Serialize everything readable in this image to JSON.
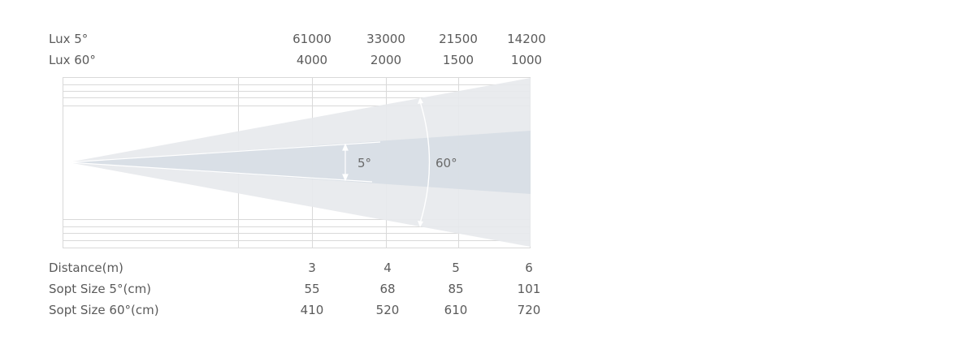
{
  "rows_top": [
    {
      "label": "Lux 5°",
      "values": [
        "61000",
        "33000",
        "21500",
        "14200"
      ]
    },
    {
      "label": "Lux 60°",
      "values": [
        "4000",
        "2000",
        "1500",
        "1000"
      ]
    }
  ],
  "rows_bottom": [
    {
      "label": "Distance(m)",
      "values": [
        "3",
        "4",
        "5",
        "6"
      ]
    },
    {
      "label": "Sopt Size 5°(cm)",
      "values": [
        "55",
        "68",
        "85",
        "101"
      ]
    },
    {
      "label": "Sopt Size 60°(cm)",
      "values": [
        "410",
        "520",
        "610",
        "720"
      ]
    }
  ],
  "beam_angles": {
    "narrow": "5°",
    "wide": "60°"
  },
  "colors": {
    "text": "#5a5a5a",
    "grid": "#d9d9d9",
    "wide_beam": "#e7e9ec",
    "narrow_beam": "#d7dee4",
    "arrow": "#ffffff"
  }
}
